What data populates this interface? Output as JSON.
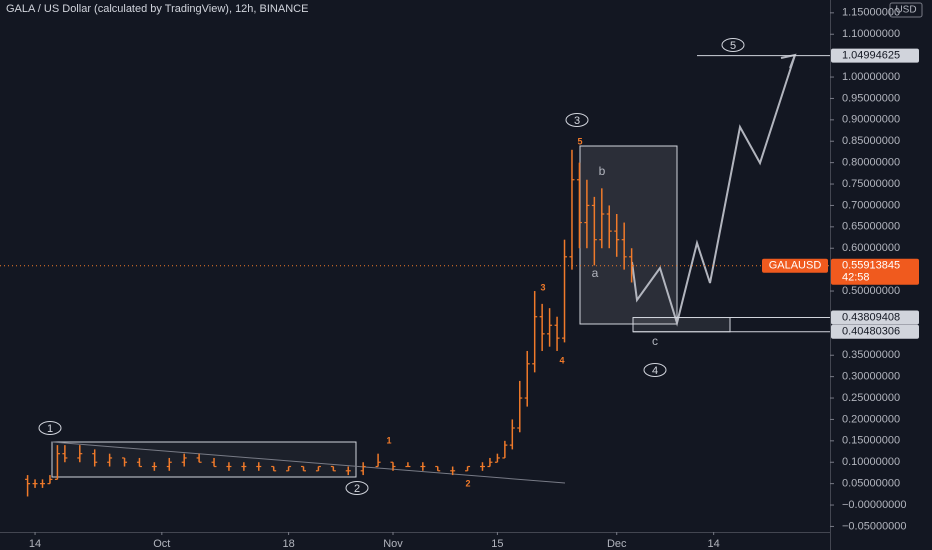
{
  "chart_data": {
    "type": "ohlc",
    "title": "GALA / US Dollar (calculated by TradingView), 12h, BINANCE",
    "currency": "USD",
    "color": "#f07a2a",
    "x": [
      -1,
      0,
      1,
      2,
      3,
      4,
      6,
      8,
      10,
      12,
      14,
      16,
      18,
      20,
      22,
      24,
      26,
      28,
      30,
      32,
      34,
      36,
      38,
      40,
      42,
      44,
      46,
      48,
      50,
      52,
      54,
      56,
      58,
      60,
      61,
      62,
      63,
      64,
      65,
      66,
      67,
      68,
      69,
      70,
      71,
      72,
      73,
      74,
      75,
      76,
      77,
      78,
      79,
      80
    ],
    "open": [
      0.06,
      0.05,
      0.05,
      0.05,
      0.06,
      0.12,
      0.11,
      0.12,
      0.1,
      0.11,
      0.1,
      0.09,
      0.09,
      0.1,
      0.11,
      0.1,
      0.09,
      0.09,
      0.09,
      0.09,
      0.08,
      0.09,
      0.08,
      0.09,
      0.08,
      0.08,
      0.09,
      0.1,
      0.09,
      0.09,
      0.09,
      0.08,
      0.08,
      0.09,
      0.09,
      0.1,
      0.11,
      0.14,
      0.18,
      0.25,
      0.33,
      0.44,
      0.4,
      0.42,
      0.39,
      0.58,
      0.76,
      0.66,
      0.7,
      0.62,
      0.68,
      0.64,
      0.62,
      0.58
    ],
    "high": [
      0.07,
      0.06,
      0.06,
      0.07,
      0.14,
      0.14,
      0.14,
      0.13,
      0.12,
      0.11,
      0.11,
      0.1,
      0.11,
      0.12,
      0.12,
      0.11,
      0.1,
      0.1,
      0.1,
      0.09,
      0.09,
      0.09,
      0.09,
      0.09,
      0.09,
      0.1,
      0.12,
      0.1,
      0.1,
      0.1,
      0.09,
      0.09,
      0.09,
      0.1,
      0.11,
      0.12,
      0.15,
      0.2,
      0.29,
      0.36,
      0.5,
      0.47,
      0.46,
      0.44,
      0.62,
      0.83,
      0.8,
      0.76,
      0.72,
      0.74,
      0.7,
      0.68,
      0.66,
      0.6
    ],
    "low": [
      0.02,
      0.04,
      0.04,
      0.05,
      0.06,
      0.1,
      0.1,
      0.09,
      0.09,
      0.09,
      0.09,
      0.08,
      0.08,
      0.09,
      0.1,
      0.09,
      0.08,
      0.08,
      0.08,
      0.08,
      0.08,
      0.08,
      0.08,
      0.08,
      0.07,
      0.07,
      0.09,
      0.08,
      0.09,
      0.08,
      0.08,
      0.07,
      0.08,
      0.08,
      0.09,
      0.1,
      0.11,
      0.13,
      0.17,
      0.23,
      0.31,
      0.36,
      0.37,
      0.36,
      0.38,
      0.55,
      0.6,
      0.6,
      0.56,
      0.6,
      0.6,
      0.58,
      0.55,
      0.52
    ],
    "close": [
      0.05,
      0.05,
      0.05,
      0.06,
      0.12,
      0.11,
      0.12,
      0.1,
      0.11,
      0.1,
      0.09,
      0.09,
      0.1,
      0.11,
      0.1,
      0.09,
      0.09,
      0.09,
      0.09,
      0.08,
      0.09,
      0.08,
      0.09,
      0.08,
      0.08,
      0.09,
      0.1,
      0.09,
      0.09,
      0.09,
      0.08,
      0.08,
      0.09,
      0.09,
      0.1,
      0.11,
      0.14,
      0.18,
      0.25,
      0.33,
      0.44,
      0.4,
      0.42,
      0.39,
      0.58,
      0.76,
      0.66,
      0.7,
      0.62,
      0.68,
      0.64,
      0.62,
      0.58,
      0.55913845
    ],
    "xlim": [
      -4.7,
      106.6
    ],
    "xticks": [
      {
        "value": 0,
        "label": "14"
      },
      {
        "value": 17,
        "label": "Oct"
      },
      {
        "value": 34,
        "label": "18"
      },
      {
        "value": 48,
        "label": "Nov"
      },
      {
        "value": 62,
        "label": "15"
      },
      {
        "value": 78,
        "label": "Dec"
      },
      {
        "value": 91,
        "label": "14"
      }
    ],
    "ylim": [
      -0.063,
      1.18
    ],
    "yticks": [
      {
        "value": 1.15,
        "label": "1.15000000"
      },
      {
        "value": 1.1,
        "label": "1.10000000"
      },
      {
        "value": 1.0,
        "label": "1.00000000"
      },
      {
        "value": 0.95,
        "label": "0.95000000"
      },
      {
        "value": 0.9,
        "label": "0.90000000"
      },
      {
        "value": 0.85,
        "label": "0.85000000"
      },
      {
        "value": 0.8,
        "label": "0.80000000"
      },
      {
        "value": 0.75,
        "label": "0.75000000"
      },
      {
        "value": 0.7,
        "label": "0.70000000"
      },
      {
        "value": 0.65,
        "label": "0.65000000"
      },
      {
        "value": 0.6,
        "label": "0.60000000"
      },
      {
        "value": 0.5,
        "label": "0.50000000"
      },
      {
        "value": 0.35,
        "label": "0.35000000"
      },
      {
        "value": 0.3,
        "label": "0.30000000"
      },
      {
        "value": 0.25,
        "label": "0.25000000"
      },
      {
        "value": 0.2,
        "label": "0.20000000"
      },
      {
        "value": 0.15,
        "label": "0.15000000"
      },
      {
        "value": 0.1,
        "label": "0.10000000"
      },
      {
        "value": 0.05,
        "label": "0.05000000"
      },
      {
        "value": 0,
        "label": "−0.00000000"
      },
      {
        "value": -0.05,
        "label": "−0.05000000"
      }
    ],
    "price_labels": [
      {
        "value": 1.04994625,
        "label": "1.04994625"
      },
      {
        "value": 0.43809408,
        "label": "0.43809408"
      },
      {
        "value": 0.40480306,
        "label": "0.40480306"
      }
    ],
    "last_price": {
      "symbol": "GALAUSD",
      "value": 0.55913845,
      "label": "0.55913845",
      "countdown": "42:58"
    },
    "wave_labels": [
      "1",
      "2",
      "3",
      "4",
      "5"
    ],
    "sub_wave_labels": [
      "a",
      "b",
      "c"
    ],
    "minor_labels": [
      "1",
      "2",
      "3",
      "4",
      "5"
    ]
  }
}
